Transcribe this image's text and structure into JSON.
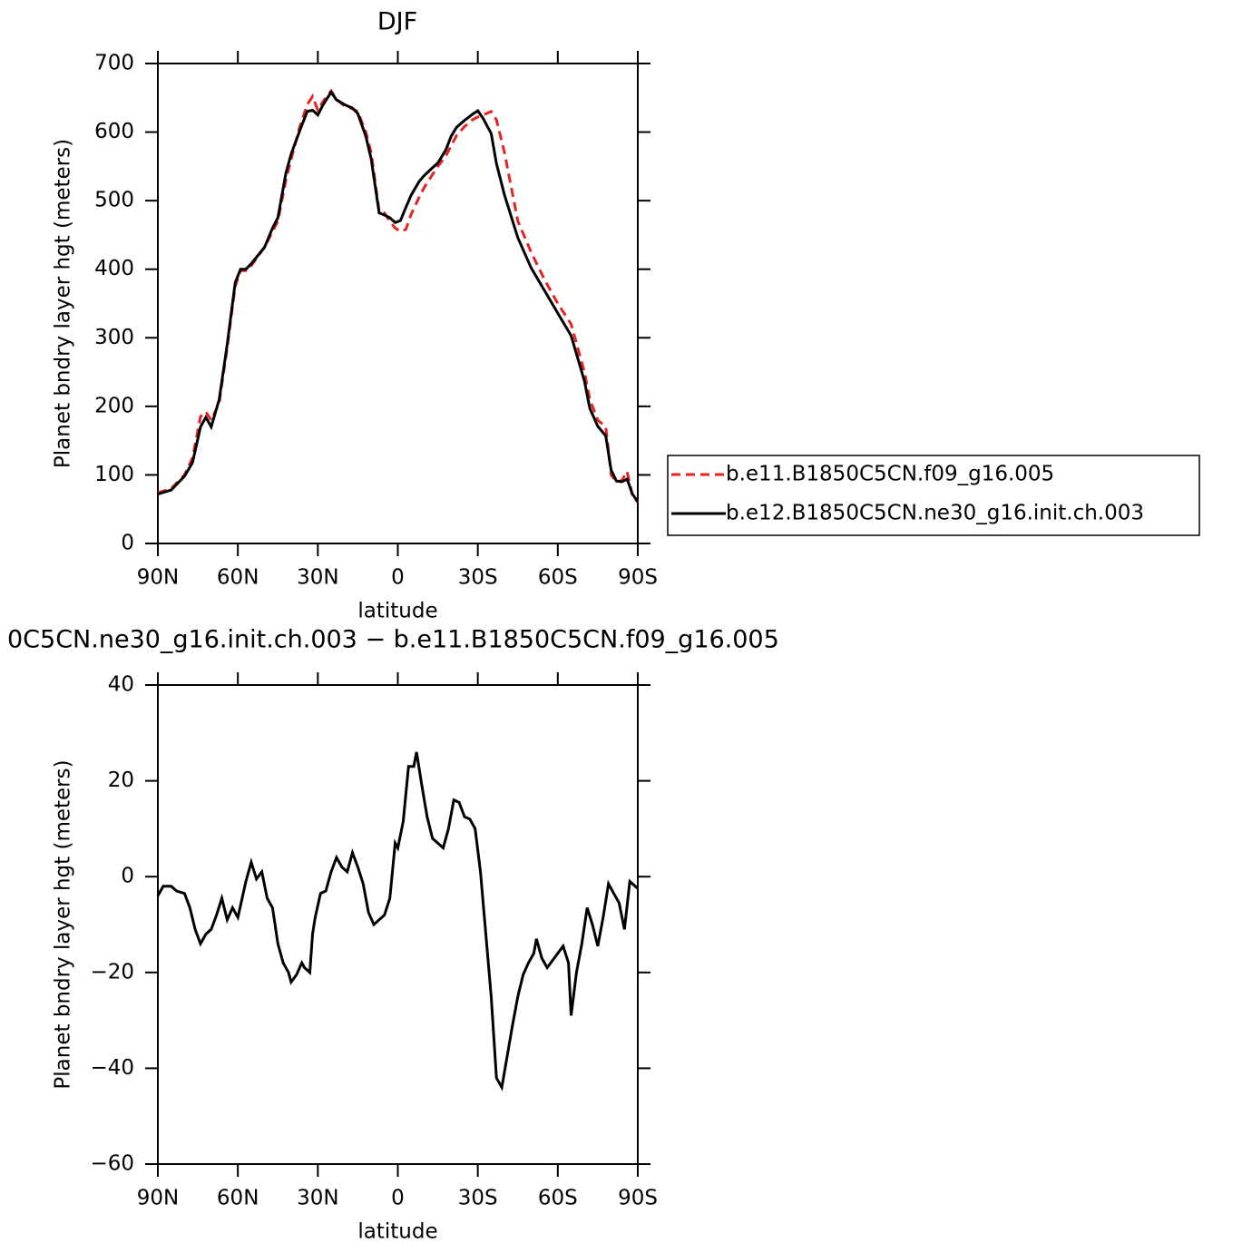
{
  "chart_data": [
    {
      "type": "line",
      "title": "DJF",
      "ylabel": "Planet bndry layer hgt (meters)",
      "xlabel": "latitude",
      "xlim": [
        90,
        -90
      ],
      "xticks": [
        {
          "value": 90,
          "label": "90N"
        },
        {
          "value": 60,
          "label": "60N"
        },
        {
          "value": 30,
          "label": "30N"
        },
        0,
        {
          "value": -30,
          "label": "30S"
        },
        {
          "value": -60,
          "label": "60S"
        },
        {
          "value": -90,
          "label": "90S"
        }
      ],
      "ylim": [
        0,
        700
      ],
      "yticks": [
        0,
        100,
        200,
        300,
        400,
        500,
        600,
        700
      ],
      "legend": "right",
      "x": [
        90,
        85,
        80,
        77,
        74,
        72,
        70,
        67,
        64,
        61,
        59,
        57,
        55,
        50,
        47,
        45,
        42,
        40,
        37,
        34,
        32,
        30,
        28,
        25,
        23,
        20,
        17,
        15,
        12,
        10,
        7,
        5,
        3,
        1,
        -1,
        -3,
        -5,
        -8,
        -10,
        -13,
        -15,
        -18,
        -20,
        -22,
        -25,
        -28,
        -30,
        -32,
        -35,
        -37,
        -40,
        -45,
        -50,
        -55,
        -60,
        -65,
        -70,
        -72,
        -75,
        -78,
        -80,
        -82,
        -84,
        -86,
        -88,
        -90
      ],
      "series": [
        {
          "name": "b.e11.B1850C5CN.f09_g16.005",
          "color": "#e8231f",
          "line_style": "dashed",
          "values": [
            74,
            80,
            100,
            125,
            185,
            192,
            180,
            205,
            285,
            375,
            398,
            398,
            405,
            432,
            455,
            470,
            530,
            560,
            605,
            640,
            652,
            632,
            645,
            660,
            648,
            638,
            634,
            630,
            600,
            570,
            485,
            482,
            470,
            460,
            455,
            458,
            480,
            505,
            520,
            538,
            550,
            565,
            580,
            595,
            608,
            618,
            622,
            625,
            630,
            618,
            570,
            470,
            425,
            385,
            350,
            320,
            250,
            210,
            180,
            170,
            100,
            90,
            92,
            105,
            70,
            60
          ]
        },
        {
          "name": "b.e12.B1850C5CN.ne30_g16.init.ch.003",
          "color": "#000000",
          "line_style": "solid",
          "values": [
            72,
            78,
            98,
            118,
            170,
            184,
            170,
            210,
            290,
            380,
            400,
            400,
            408,
            432,
            460,
            475,
            540,
            568,
            600,
            630,
            632,
            625,
            640,
            658,
            647,
            640,
            635,
            627,
            594,
            561,
            482,
            479,
            475,
            468,
            471,
            490,
            508,
            528,
            537,
            548,
            555,
            574,
            594,
            607,
            617,
            626,
            631,
            620,
            598,
            554,
            508,
            446,
            402,
            369,
            336,
            303,
            237,
            197,
            171,
            157,
            107,
            91,
            90,
            94,
            72,
            61
          ]
        }
      ]
    },
    {
      "type": "line",
      "title": "0C5CN.ne30_g16.init.ch.003 − b.e11.B1850C5CN.f09_g16.005",
      "ylabel": "Planet bndry layer hgt (meters)",
      "xlabel": "latitude",
      "xlim": [
        90,
        -90
      ],
      "xticks": [
        {
          "value": 90,
          "label": "90N"
        },
        {
          "value": 60,
          "label": "60N"
        },
        {
          "value": 30,
          "label": "30N"
        },
        0,
        {
          "value": -30,
          "label": "30S"
        },
        {
          "value": -60,
          "label": "60S"
        },
        {
          "value": -90,
          "label": "90S"
        }
      ],
      "ylim": [
        -60,
        40
      ],
      "yticks": [
        {
          "value": -60,
          "label": "−60"
        },
        {
          "value": -40,
          "label": "−40"
        },
        {
          "value": -20,
          "label": "−20"
        },
        0,
        20,
        40
      ],
      "color": "#000000",
      "x": [
        90,
        88,
        85,
        83,
        80,
        78,
        76,
        74,
        72,
        70,
        68,
        66,
        64,
        62,
        60,
        57,
        55,
        53,
        51,
        49,
        47,
        45,
        43,
        41,
        40,
        38,
        36,
        35,
        33,
        32,
        31,
        29,
        27,
        25,
        23,
        21,
        19,
        17,
        15,
        13,
        11,
        9,
        7,
        5,
        3,
        1,
        0,
        -2,
        -4,
        -6,
        -7,
        -9,
        -11,
        -13,
        -15,
        -17,
        -19,
        -21,
        -23,
        -25,
        -27,
        -29,
        -31,
        -33,
        -35,
        -37,
        -39,
        -41,
        -43,
        -45,
        -47,
        -49,
        -51,
        -52,
        -54,
        -56,
        -58,
        -60,
        -62,
        -64,
        -65,
        -67,
        -69,
        -71,
        -73,
        -75,
        -77,
        -79,
        -81,
        -83,
        -85,
        -87,
        -89,
        -90
      ],
      "values": [
        -4,
        -2,
        -2,
        -3,
        -3.5,
        -6.5,
        -11,
        -14,
        -12,
        -11,
        -8,
        -4.5,
        -9,
        -6.5,
        -8.5,
        -1,
        3,
        -0.5,
        1,
        -4.5,
        -6.5,
        -14,
        -18,
        -20,
        -22,
        -20.5,
        -18,
        -19,
        -20,
        -12,
        -8.5,
        -3.5,
        -3,
        1,
        4,
        2,
        1,
        5,
        2,
        -1.5,
        -7.5,
        -10,
        -9,
        -8,
        -4.5,
        7,
        6,
        11.5,
        23,
        23,
        26,
        19,
        12.5,
        8,
        7,
        6,
        10,
        16,
        15.5,
        12.5,
        12,
        10,
        1,
        -12,
        -25,
        -42,
        -44,
        -37.5,
        -31,
        -25,
        -20.5,
        -18,
        -16,
        -13,
        -17,
        -19,
        -17.5,
        -16,
        -14.5,
        -18,
        -29,
        -20,
        -14,
        -6.5,
        -10,
        -14.5,
        -8.5,
        -1.5,
        -3.5,
        -5.5,
        -11,
        -1,
        -2,
        -2.5
      ]
    }
  ]
}
